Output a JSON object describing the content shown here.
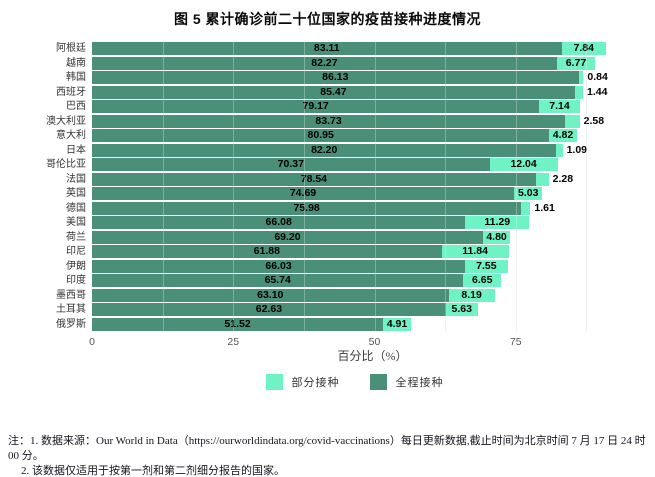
{
  "chart_data": {
    "type": "bar",
    "orientation": "horizontal",
    "stacked": true,
    "title": "图 5 累计确诊前二十位国家的疫苗接种进度情况",
    "categories": [
      "阿根廷",
      "越南",
      "韩国",
      "西班牙",
      "巴西",
      "澳大利亚",
      "意大利",
      "日本",
      "哥伦比亚",
      "法国",
      "英国",
      "德国",
      "美国",
      "荷兰",
      "印尼",
      "伊朗",
      "印度",
      "墨西哥",
      "土耳其",
      "俄罗斯"
    ],
    "series": [
      {
        "name": "全程接种",
        "color": "#4a9078",
        "values": [
          83.11,
          82.27,
          86.13,
          85.47,
          79.17,
          83.73,
          80.95,
          82.2,
          70.37,
          78.54,
          74.69,
          75.98,
          66.08,
          69.2,
          61.88,
          66.03,
          65.74,
          63.1,
          62.63,
          51.52
        ]
      },
      {
        "name": "部分接种",
        "color": "#6ff2c4",
        "values": [
          7.84,
          6.77,
          0.84,
          1.44,
          7.14,
          2.58,
          4.82,
          1.09,
          12.04,
          2.28,
          5.03,
          1.61,
          11.29,
          4.8,
          11.84,
          7.55,
          6.65,
          8.19,
          5.63,
          4.91
        ]
      }
    ],
    "xlabel": "百分比（%）",
    "xticks": [
      0,
      25,
      50,
      75
    ],
    "xlim": [
      0,
      100
    ],
    "grid_interval": 12.5,
    "grid": true,
    "value_labels": true,
    "legend_position": "bottom",
    "legend": [
      {
        "label": "部分接种",
        "color": "#6ff2c4"
      },
      {
        "label": "全程接种",
        "color": "#4a9078"
      }
    ]
  },
  "notes": {
    "lines": [
      "注：1. 数据来源：Our World in Data（https://ourworldindata.org/covid-vaccinations）每日更新数据,截止时间为北京时间 7 月 17 日 24 时 00 分。",
      "2. 该数据仅适用于按第一剂和第二剂细分报告的国家。"
    ]
  }
}
